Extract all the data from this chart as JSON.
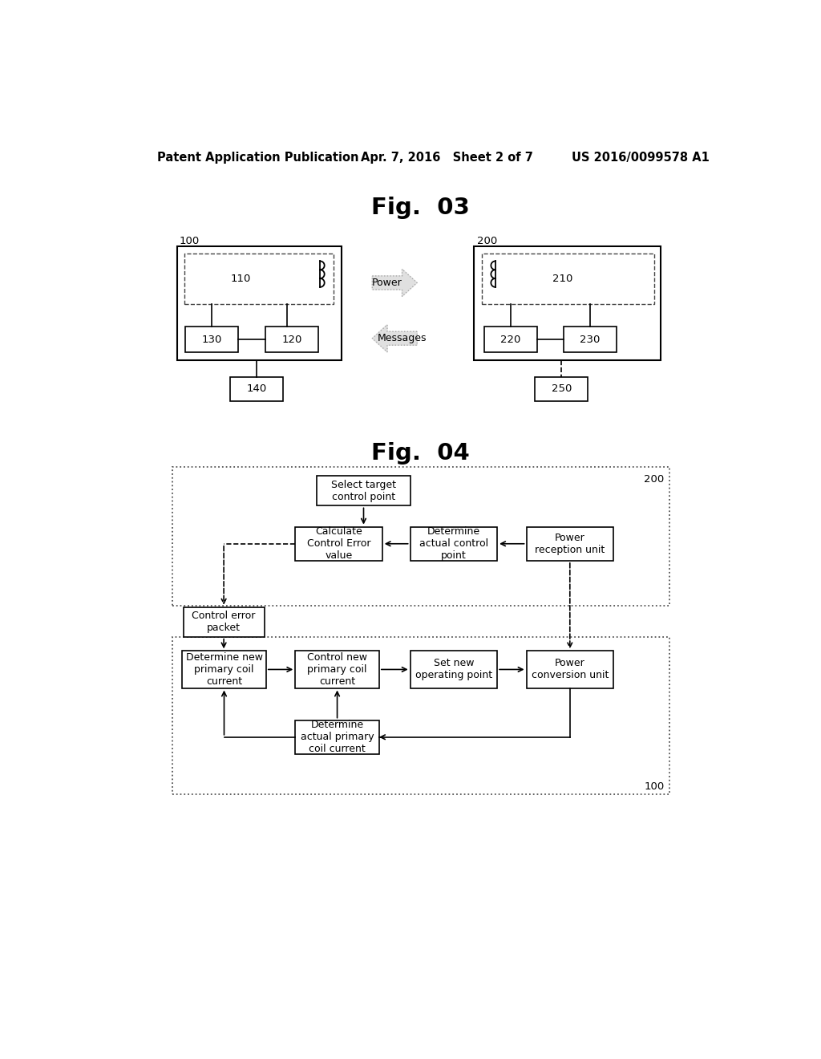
{
  "background_color": "#ffffff",
  "header_left": "Patent Application Publication",
  "header_center": "Apr. 7, 2016   Sheet 2 of 7",
  "header_right": "US 2016/0099578 A1",
  "fig03_title": "Fig.  03",
  "fig04_title": "Fig.  04"
}
